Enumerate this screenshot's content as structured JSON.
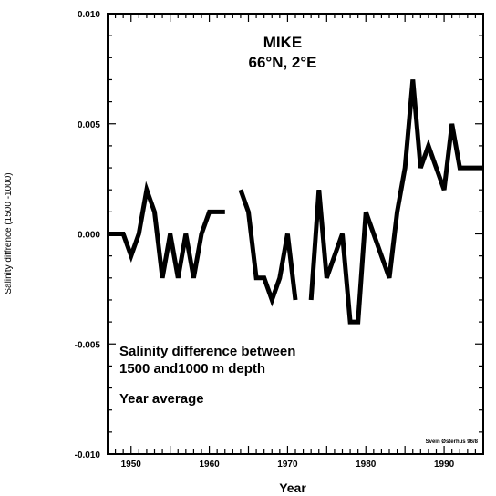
{
  "chart_data": {
    "type": "line",
    "title": "MIKE",
    "subtitle": "66°N, 2°E",
    "xlabel": "Year",
    "ylabel": "Salinity diffrence (1500 -1000)",
    "xlim": [
      1947,
      1995
    ],
    "ylim": [
      -0.01,
      0.01
    ],
    "xticks": [
      {
        "value": 1950,
        "label": "1950"
      },
      {
        "value": 1960,
        "label": "1960"
      },
      {
        "value": 1970,
        "label": "1970"
      },
      {
        "value": 1980,
        "label": "1980"
      },
      {
        "value": 1990,
        "label": "1990"
      }
    ],
    "yticks": [
      {
        "value": 0.01,
        "label": "0.010"
      },
      {
        "value": 0.005,
        "label": "0.005"
      },
      {
        "value": 0.0,
        "label": "0.000"
      },
      {
        "value": -0.005,
        "label": "-0.005"
      },
      {
        "value": -0.01,
        "label": "-0.010"
      }
    ],
    "annotations": [
      "Salinity difference between",
      "1500 and1000 m depth",
      "Year average"
    ],
    "credit": "Svein Østerhus 96/8",
    "grid": false,
    "series": [
      {
        "segments": [
          {
            "x": [
              1947,
              1949,
              1950,
              1951,
              1952,
              1953,
              1954,
              1955,
              1956,
              1957,
              1958,
              1959,
              1960,
              1961,
              1962
            ],
            "y": [
              0.0,
              0.0,
              -0.001,
              0.0,
              0.002,
              0.001,
              -0.002,
              0.0,
              -0.002,
              0.0,
              -0.002,
              0.0,
              0.001,
              0.001,
              0.001
            ]
          },
          {
            "x": [
              1964,
              1965,
              1966,
              1967,
              1968,
              1969,
              1970,
              1971
            ],
            "y": [
              0.002,
              0.001,
              -0.002,
              -0.002,
              -0.003,
              -0.002,
              0.0,
              -0.003
            ]
          },
          {
            "x": [
              1973,
              1974,
              1975,
              1976,
              1977,
              1978,
              1979,
              1980,
              1981,
              1982,
              1983,
              1984,
              1985,
              1986,
              1987,
              1988,
              1989,
              1990,
              1991,
              1992,
              1993,
              1994,
              1995
            ],
            "y": [
              -0.003,
              0.002,
              -0.002,
              -0.001,
              0.0,
              -0.004,
              -0.004,
              0.001,
              0.0,
              -0.001,
              -0.002,
              0.001,
              0.003,
              0.007,
              0.003,
              0.004,
              0.003,
              0.002,
              0.005,
              0.003,
              0.003,
              0.003,
              0.003
            ]
          }
        ]
      }
    ]
  }
}
